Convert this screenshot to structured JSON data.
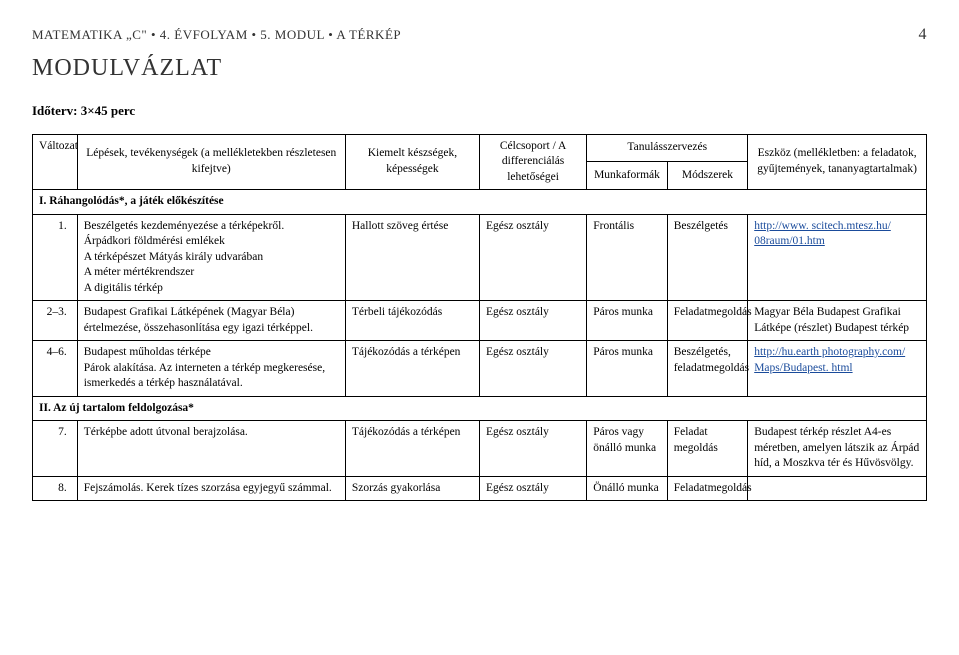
{
  "header": {
    "breadcrumb_left": "MATEMATIKA „C\" • 4. ÉVFOLYAM • 5. MODUL • A TÉRKÉP",
    "page_number": "4"
  },
  "title": "MODULVÁZLAT",
  "time_plan_label": "Időterv: 3×45 perc",
  "table": {
    "headers": {
      "variant": "Változat",
      "steps": "Lépések, tevékenységek\n(a mellékletekben részletesen kifejtve)",
      "skills": "Kiemelt készségek, képességek",
      "target_group": "Célcsoport /\nA differenciálás lehetőségei",
      "learning_org": "Tanulásszervezés",
      "work_forms": "Munkaformák",
      "methods": "Módszerek",
      "tools": "Eszköz\n(mellékletben: a feladatok, gyűjtemények, tananyagtartalmak)"
    },
    "section_a": "I. Ráhangolódás*, a játék előkészítése",
    "section_b": "II. Az új tartalom feldolgozása*",
    "rows": [
      {
        "num": "1.",
        "step": "Beszélgetés kezdeményezése a térképekről.\nÁrpádkori földmérési emlékek\nA térképészet Mátyás király udvarában\nA méter mértékrendszer\nA digitális térkép",
        "skill": "Hallott szöveg értése",
        "group": "Egész osztály",
        "form": "Frontális",
        "method": "Beszélgetés",
        "tool_link": "http://www.scitech.mtesz.hu/08raum/01.htm",
        "tool_link_display": "http://www. scitech.mtesz.hu/ 08raum/01.htm"
      },
      {
        "num": "2–3.",
        "step": "Budapest Grafikai Látképének (Magyar Béla) értelmezése, összehasonlítása egy igazi térképpel.",
        "skill": "Térbeli tájékozódás",
        "group": "Egész osztály",
        "form": "Páros munka",
        "method": "Feladatmegoldás",
        "tool_text": "Magyar Béla Budapest Grafikai Látképe (részlet) Budapest térkép"
      },
      {
        "num": "4–6.",
        "step": "Budapest műholdas térképe\nPárok alakítása. Az interneten a térkép megkeresése, ismerkedés a térkép használatával.",
        "skill": "Tájékozódás a térképen",
        "group": "Egész osztály",
        "form": "Páros munka",
        "method": "Beszélgetés, feladatmegoldás",
        "tool_link": "http://hu.earthphotography.com/Maps/Budapest.html",
        "tool_link_display": "http://hu.earth photography.com/ Maps/Budapest. html"
      },
      {
        "num": "7.",
        "step": "Térképbe adott útvonal berajzolása.",
        "skill": "Tájékozódás a térképen",
        "group": "Egész osztály",
        "form": "Páros vagy önálló munka",
        "method": "Feladat megoldás",
        "tool_text": "Budapest térkép részlet A4-es méretben, amelyen látszik az Árpád híd, a Moszkva tér és Hűvösvölgy."
      },
      {
        "num": "8.",
        "step": "Fejszámolás. Kerek tízes szorzása egyjegyű számmal.",
        "skill": "Szorzás gyakorlása",
        "group": "Egész osztály",
        "form": "Önálló munka",
        "method": "Feladatmegoldás",
        "tool_text": ""
      }
    ]
  }
}
